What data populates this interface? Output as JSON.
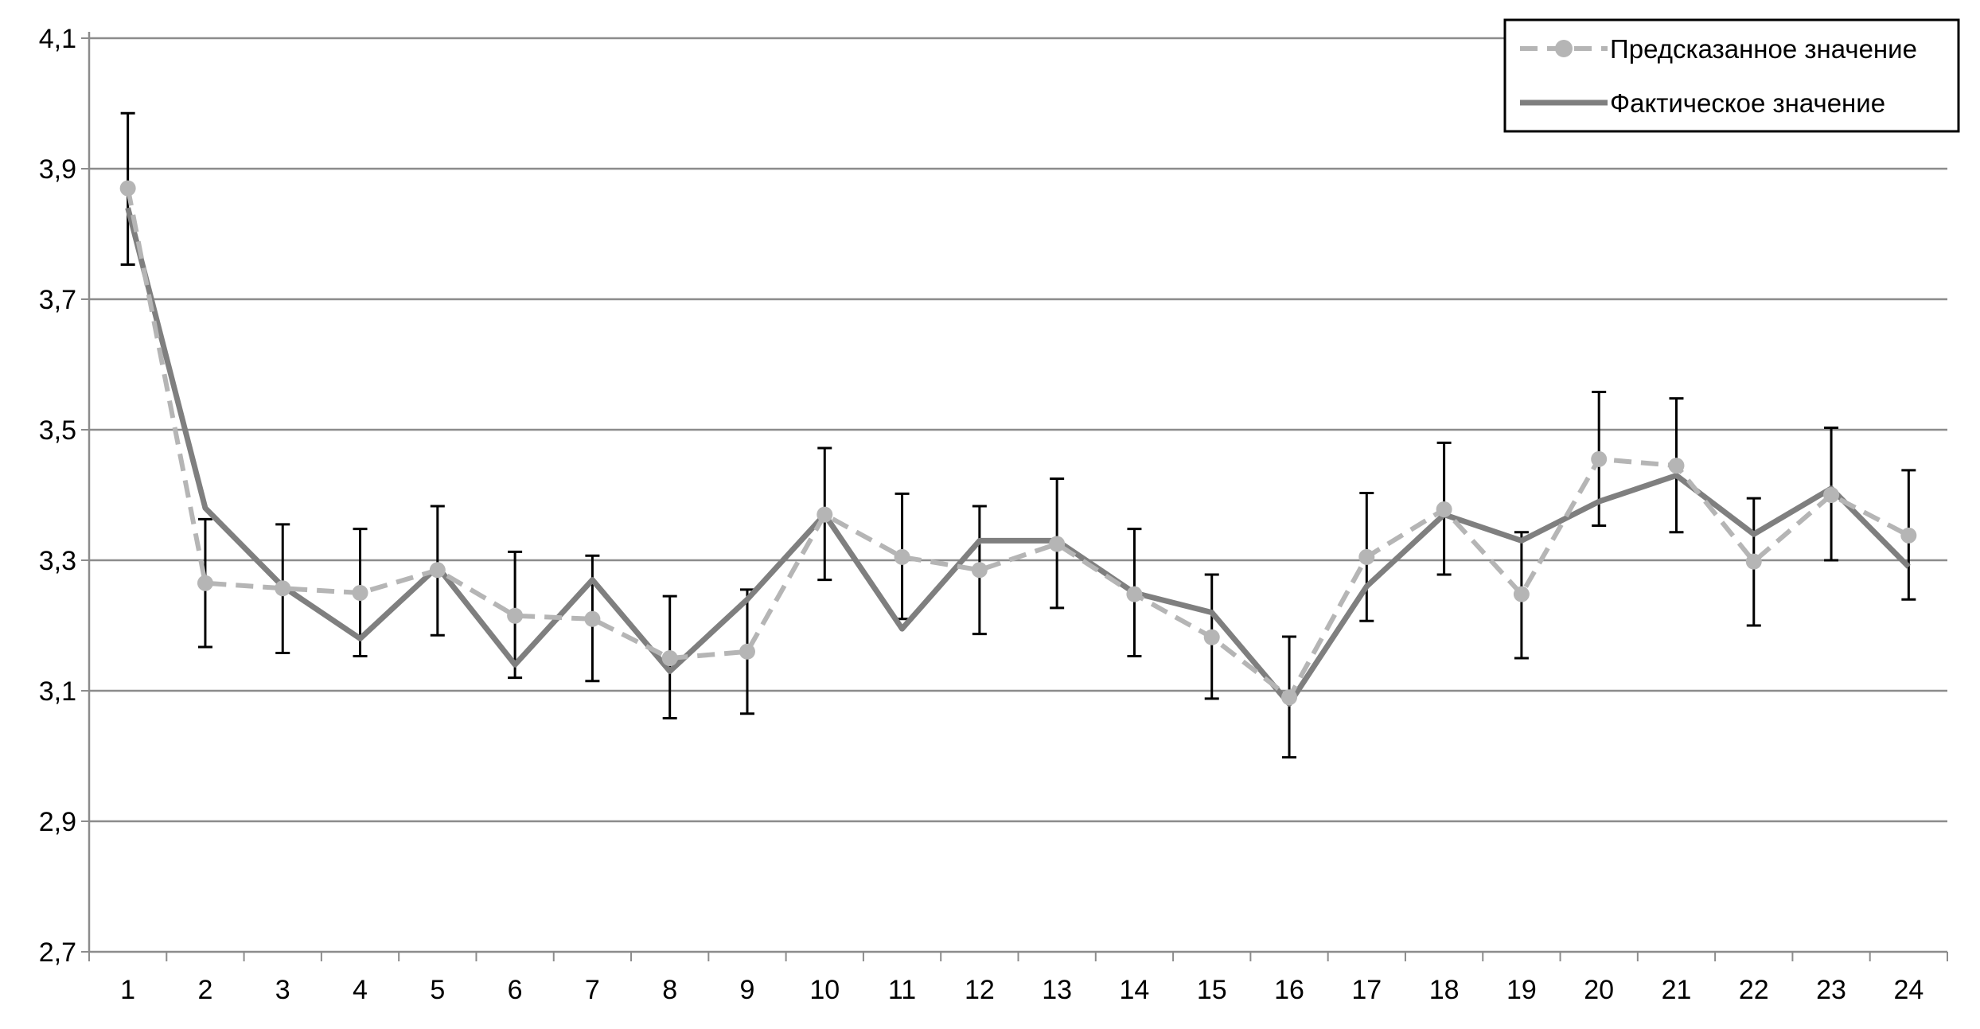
{
  "chart_data": {
    "type": "line",
    "title": "",
    "xlabel": "",
    "ylabel": "",
    "categories": [
      "1",
      "2",
      "3",
      "4",
      "5",
      "6",
      "7",
      "8",
      "9",
      "10",
      "11",
      "12",
      "13",
      "14",
      "15",
      "16",
      "17",
      "18",
      "19",
      "20",
      "21",
      "22",
      "23",
      "24"
    ],
    "ylim": [
      2.7,
      4.1
    ],
    "yticks": [
      "2,7",
      "2,9",
      "3,1",
      "3,3",
      "3,5",
      "3,7",
      "3,9",
      "4,1"
    ],
    "ytick_values": [
      2.7,
      2.9,
      3.1,
      3.3,
      3.5,
      3.7,
      3.9,
      4.1
    ],
    "grid": "horizontal",
    "legend_position": "top-right",
    "series": [
      {
        "name": "Предсказанное значение",
        "style": "dashed-markers",
        "color": "#b5b5b5",
        "values": [
          3.87,
          3.265,
          3.257,
          3.25,
          3.285,
          3.215,
          3.21,
          3.15,
          3.16,
          3.37,
          3.305,
          3.285,
          3.325,
          3.248,
          3.182,
          3.09,
          3.305,
          3.378,
          3.248,
          3.455,
          3.445,
          3.298,
          3.4,
          3.338
        ],
        "error_low": [
          3.753,
          3.167,
          3.158,
          3.153,
          3.185,
          3.12,
          3.115,
          3.058,
          3.065,
          3.27,
          3.21,
          3.187,
          3.227,
          3.153,
          3.088,
          2.998,
          3.207,
          3.278,
          3.15,
          3.353,
          3.343,
          3.2,
          3.3,
          3.24
        ],
        "error_high": [
          3.985,
          3.363,
          3.355,
          3.348,
          3.383,
          3.313,
          3.307,
          3.245,
          3.255,
          3.472,
          3.402,
          3.383,
          3.425,
          3.348,
          3.278,
          3.183,
          3.403,
          3.48,
          3.343,
          3.558,
          3.548,
          3.395,
          3.503,
          3.438
        ]
      },
      {
        "name": "Фактическое значение",
        "style": "solid",
        "color": "#7f7f7f",
        "values": [
          3.84,
          3.38,
          3.26,
          3.18,
          3.29,
          3.14,
          3.27,
          3.13,
          3.24,
          3.37,
          3.195,
          3.33,
          3.33,
          3.25,
          3.22,
          3.08,
          3.26,
          3.37,
          3.33,
          3.39,
          3.43,
          3.34,
          3.41,
          3.29
        ]
      }
    ]
  }
}
